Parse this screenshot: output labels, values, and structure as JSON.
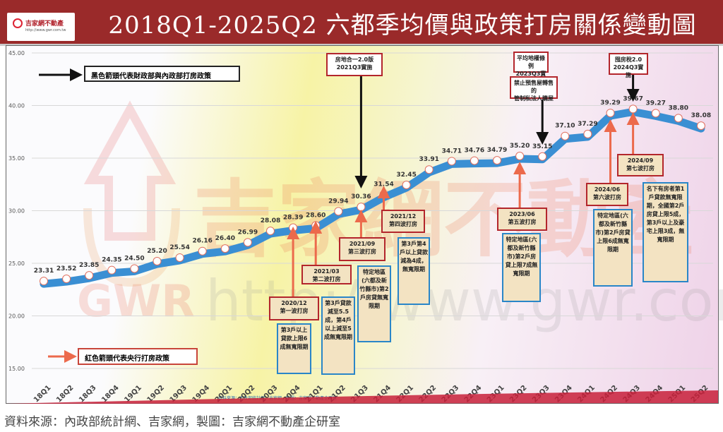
{
  "header": {
    "title": "2018Q1-2025Q2 六都季均價與政策打房關係變動圖",
    "logo_text": "吉家網不動產",
    "logo_url": "http://www.gwr.com.tw"
  },
  "watermark": {
    "brand": "吉家網不動產",
    "abbr": "GWR",
    "url": "http://www.gwr.com.tw"
  },
  "legend": {
    "black": "黑色箭頭代表財政部與內政部打房政策",
    "red": "紅色箭頭代表央行打房政策"
  },
  "chart_data": {
    "type": "line",
    "title": "2018Q1-2025Q2 六都季均價與政策打房關係變動圖",
    "xlabel": "",
    "ylabel": "",
    "ylim": [
      15,
      45
    ],
    "yticks": [
      "15.00",
      "20.00",
      "25.00",
      "30.00",
      "35.00",
      "40.00",
      "45.00"
    ],
    "grid": true,
    "categories": [
      "18Q1",
      "18Q2",
      "18Q3",
      "18Q4",
      "19Q1",
      "19Q2",
      "19Q3",
      "19Q4",
      "20Q1",
      "20Q2",
      "20Q3",
      "20Q4",
      "21Q1",
      "21Q2",
      "21Q3",
      "21Q4",
      "22Q1",
      "22Q2",
      "22Q3",
      "22Q4",
      "23Q1",
      "23Q2",
      "23Q3",
      "23Q4",
      "24Q1",
      "24Q2",
      "24Q3",
      "24Q4",
      "25Q1",
      "25Q2"
    ],
    "values": [
      23.31,
      23.52,
      23.85,
      24.35,
      24.5,
      25.2,
      25.54,
      26.16,
      26.4,
      26.99,
      28.08,
      28.39,
      28.6,
      29.94,
      30.36,
      31.54,
      32.45,
      33.91,
      34.71,
      34.76,
      34.79,
      35.2,
      35.15,
      37.1,
      37.29,
      39.29,
      39.67,
      39.27,
      38.8,
      38.08
    ],
    "line_color": "#3a8fd3",
    "inner_source": "資料來源：內政部統計網、吉家網，製圖：吉家網不動產企研室",
    "annotations_black": [
      {
        "quarter": "21Q3",
        "lines": [
          "房地合一2.0版",
          "2021Q3實施"
        ]
      },
      {
        "quarter": "23Q3",
        "lines": [
          "平均地權條例",
          "2023Q3實施"
        ],
        "sub": [
          "禁止預售屋轉售的",
          "管制私法人購屋"
        ]
      },
      {
        "quarter": "24Q3",
        "lines": [
          "囤房稅2.0",
          "2024Q3實施"
        ]
      }
    ],
    "annotations_red": [
      {
        "quarter": "20Q4",
        "date": "2020/12",
        "wave": "第一波打房",
        "detail": "第3戶以上貸款上限6成無寬限期"
      },
      {
        "quarter": "21Q1",
        "date": "2021/03",
        "wave": "第二波打房",
        "detail": "第3戶貸款減至5.5成，第4戶以上減至5成無寬限期"
      },
      {
        "quarter": "21Q3",
        "date": "2021/09",
        "wave": "第三波打房",
        "detail": "特定地區(六都及新竹縣市)第2戶房貸無寬限期"
      },
      {
        "quarter": "21Q4",
        "date": "2021/12",
        "wave": "第四波打房",
        "detail": "第3戶第4戶以上貸款減為4成，無寬限期"
      },
      {
        "quarter": "23Q2",
        "date": "2023/06",
        "wave": "第五波打房",
        "detail": "特定地區(六都及新竹縣市)第2戶房貸上限7成無寬限期"
      },
      {
        "quarter": "24Q2",
        "date": "2024/06",
        "wave": "第六波打房",
        "detail": "特定地區(六都及新竹縣市)第2戶房貸上限6成無寬限期"
      },
      {
        "quarter": "24Q3",
        "date": "2024/09",
        "wave": "第七波打房",
        "detail": "名下有房者第1戶貸款無寬限期，全國第2戶房貸上限5成，第3戶以上及豪宅上限3成，無寬限期"
      }
    ]
  },
  "footer": {
    "source": "資料來源：內政部統計網、吉家網，製圖：吉家網不動產企研室"
  }
}
